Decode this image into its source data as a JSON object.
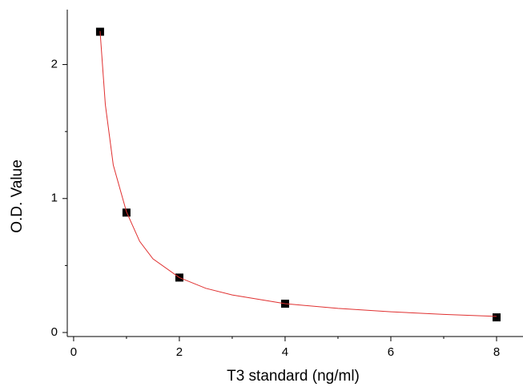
{
  "chart_data": {
    "type": "scatter",
    "xlabel": "T3 standard (ng/ml)",
    "ylabel": "O.D. Value",
    "xlim": [
      -0.12,
      8.5
    ],
    "ylim": [
      -0.03,
      2.41
    ],
    "xticks": [
      0,
      2,
      4,
      6,
      8
    ],
    "yticks": [
      0,
      1,
      2
    ],
    "xminorticks": [
      1,
      3,
      5,
      7
    ],
    "yminorticks": [
      0.5,
      1.5
    ],
    "series": [
      {
        "mode": "markers",
        "color": "#000000",
        "x": [
          0.5,
          1,
          2,
          4,
          8
        ],
        "values": [
          2.245,
          0.895,
          0.41,
          0.215,
          0.113
        ]
      },
      {
        "mode": "line",
        "color": "#e03030",
        "x": [
          0.5,
          0.6,
          0.75,
          1,
          1.25,
          1.5,
          2,
          2.5,
          3,
          4,
          5,
          6,
          7,
          8
        ],
        "values": [
          2.25,
          1.7,
          1.25,
          0.9,
          0.68,
          0.55,
          0.41,
          0.33,
          0.28,
          0.215,
          0.18,
          0.155,
          0.135,
          0.12
        ]
      }
    ]
  }
}
